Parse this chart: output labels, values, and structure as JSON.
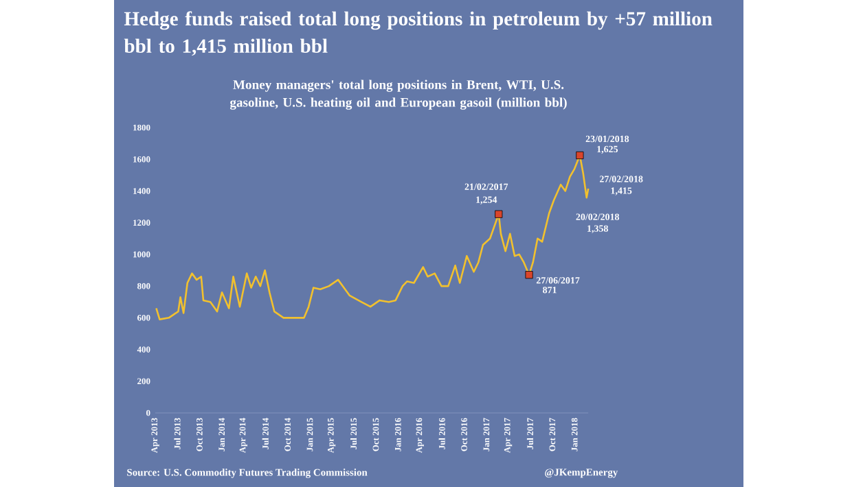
{
  "chart_data": {
    "type": "line",
    "title": "Hedge funds raised total long positions in petroleum by +57 million bbl to 1,415 million bbl",
    "subtitle": "Money managers' total long positions in Brent, WTI, U.S. gasoline, U.S. heating oil and European gasoil (million bbl)",
    "xlim": [
      "2013-04-01",
      "2018-02-27"
    ],
    "ylim": [
      0,
      1800
    ],
    "yticks": [
      0,
      200,
      400,
      600,
      800,
      1000,
      1200,
      1400,
      1600,
      1800
    ],
    "xticks": [
      {
        "value": "2013-04-01",
        "label": "Apr 2013"
      },
      {
        "value": "2013-07-01",
        "label": "Jul 2013"
      },
      {
        "value": "2013-10-01",
        "label": "Oct 2013"
      },
      {
        "value": "2014-01-01",
        "label": "Jan 2014"
      },
      {
        "value": "2014-04-01",
        "label": "Apr 2014"
      },
      {
        "value": "2014-07-01",
        "label": "Jul 2014"
      },
      {
        "value": "2014-10-01",
        "label": "Oct 2014"
      },
      {
        "value": "2015-01-01",
        "label": "Jan 2015"
      },
      {
        "value": "2015-04-01",
        "label": "Apr 2015"
      },
      {
        "value": "2015-07-01",
        "label": "Jul 2015"
      },
      {
        "value": "2015-10-01",
        "label": "Oct 2015"
      },
      {
        "value": "2016-01-01",
        "label": "Jan 2016"
      },
      {
        "value": "2016-04-01",
        "label": "Apr 2016"
      },
      {
        "value": "2016-07-01",
        "label": "Jul 2016"
      },
      {
        "value": "2016-10-01",
        "label": "Oct 2016"
      },
      {
        "value": "2017-01-01",
        "label": "Jan 2017"
      },
      {
        "value": "2017-04-01",
        "label": "Apr 2017"
      },
      {
        "value": "2017-07-01",
        "label": "Jul 2017"
      },
      {
        "value": "2017-10-01",
        "label": "Oct 2017"
      },
      {
        "value": "2018-01-01",
        "label": "Jan 2018"
      }
    ],
    "marker": "none",
    "series": [
      {
        "color": "#f2c12e",
        "x": [
          "2013-04-05",
          "2013-04-19",
          "2013-05-27",
          "2013-07-05",
          "2013-07-14",
          "2013-07-27",
          "2013-08-12",
          "2013-08-31",
          "2013-09-19",
          "2013-10-08",
          "2013-10-17",
          "2013-11-15",
          "2013-12-13",
          "2014-01-02",
          "2014-01-31",
          "2014-02-18",
          "2014-03-17",
          "2014-04-15",
          "2014-05-03",
          "2014-05-22",
          "2014-06-10",
          "2014-06-29",
          "2014-07-18",
          "2014-08-07",
          "2014-09-14",
          "2014-11-10",
          "2014-12-08",
          "2014-12-27",
          "2015-01-16",
          "2015-02-13",
          "2015-03-21",
          "2015-04-28",
          "2015-05-17",
          "2015-06-15",
          "2015-08-02",
          "2015-09-09",
          "2015-10-17",
          "2015-11-24",
          "2015-12-22",
          "2016-01-20",
          "2016-02-08",
          "2016-03-07",
          "2016-04-14",
          "2016-05-03",
          "2016-06-01",
          "2016-06-29",
          "2016-07-27",
          "2016-08-25",
          "2016-09-13",
          "2016-10-12",
          "2016-11-10",
          "2016-11-29",
          "2016-12-18",
          "2017-01-16",
          "2017-02-21",
          "2017-03-02",
          "2017-03-21",
          "2017-04-09",
          "2017-04-28",
          "2017-05-17",
          "2017-06-05",
          "2017-06-27",
          "2017-07-13",
          "2017-08-01",
          "2017-08-20",
          "2017-09-18",
          "2017-10-07",
          "2017-11-05",
          "2017-11-24",
          "2017-12-13",
          "2018-01-01",
          "2018-01-23",
          "2018-02-06",
          "2018-02-20",
          "2018-02-27"
        ],
        "values": [
          660,
          590,
          600,
          640,
          730,
          630,
          820,
          880,
          840,
          860,
          710,
          700,
          640,
          760,
          660,
          860,
          670,
          880,
          790,
          860,
          800,
          900,
          760,
          640,
          600,
          600,
          600,
          670,
          790,
          780,
          800,
          840,
          800,
          740,
          700,
          670,
          710,
          700,
          710,
          800,
          830,
          820,
          920,
          860,
          880,
          800,
          800,
          930,
          820,
          990,
          890,
          950,
          1060,
          1100,
          1254,
          1130,
          1020,
          1130,
          990,
          1000,
          950,
          871,
          950,
          1100,
          1080,
          1260,
          1340,
          1440,
          1400,
          1490,
          1540,
          1625,
          1510,
          1358,
          1415
        ]
      },
      {
        "type": "scatter",
        "marker": "square",
        "color": "#d9452b",
        "x": [
          "2017-02-21",
          "2017-06-27",
          "2018-01-23"
        ],
        "values": [
          1254,
          871,
          1625
        ]
      }
    ],
    "annotations": [
      {
        "text": "21/02/2017",
        "x": "2017-02-21",
        "y": 1254
      },
      {
        "text": "1,254",
        "x": "2017-02-21",
        "y": 1254
      },
      {
        "text": "27/06/2017",
        "x": "2017-06-27",
        "y": 871
      },
      {
        "text": "871",
        "x": "2017-06-27",
        "y": 871
      },
      {
        "text": "23/01/2018",
        "x": "2018-01-23",
        "y": 1625
      },
      {
        "text": "1,625",
        "x": "2018-01-23",
        "y": 1625
      },
      {
        "text": "27/02/2018",
        "x": "2018-02-27",
        "y": 1415
      },
      {
        "text": "1,415",
        "x": "2018-02-27",
        "y": 1415
      },
      {
        "text": "20/02/2018",
        "x": "2018-02-20",
        "y": 1358
      },
      {
        "text": "1,358",
        "x": "2018-02-20",
        "y": 1358
      },
      "Source: U.S. Commodity Futures Trading Commission",
      "@JKempEnergy"
    ]
  }
}
